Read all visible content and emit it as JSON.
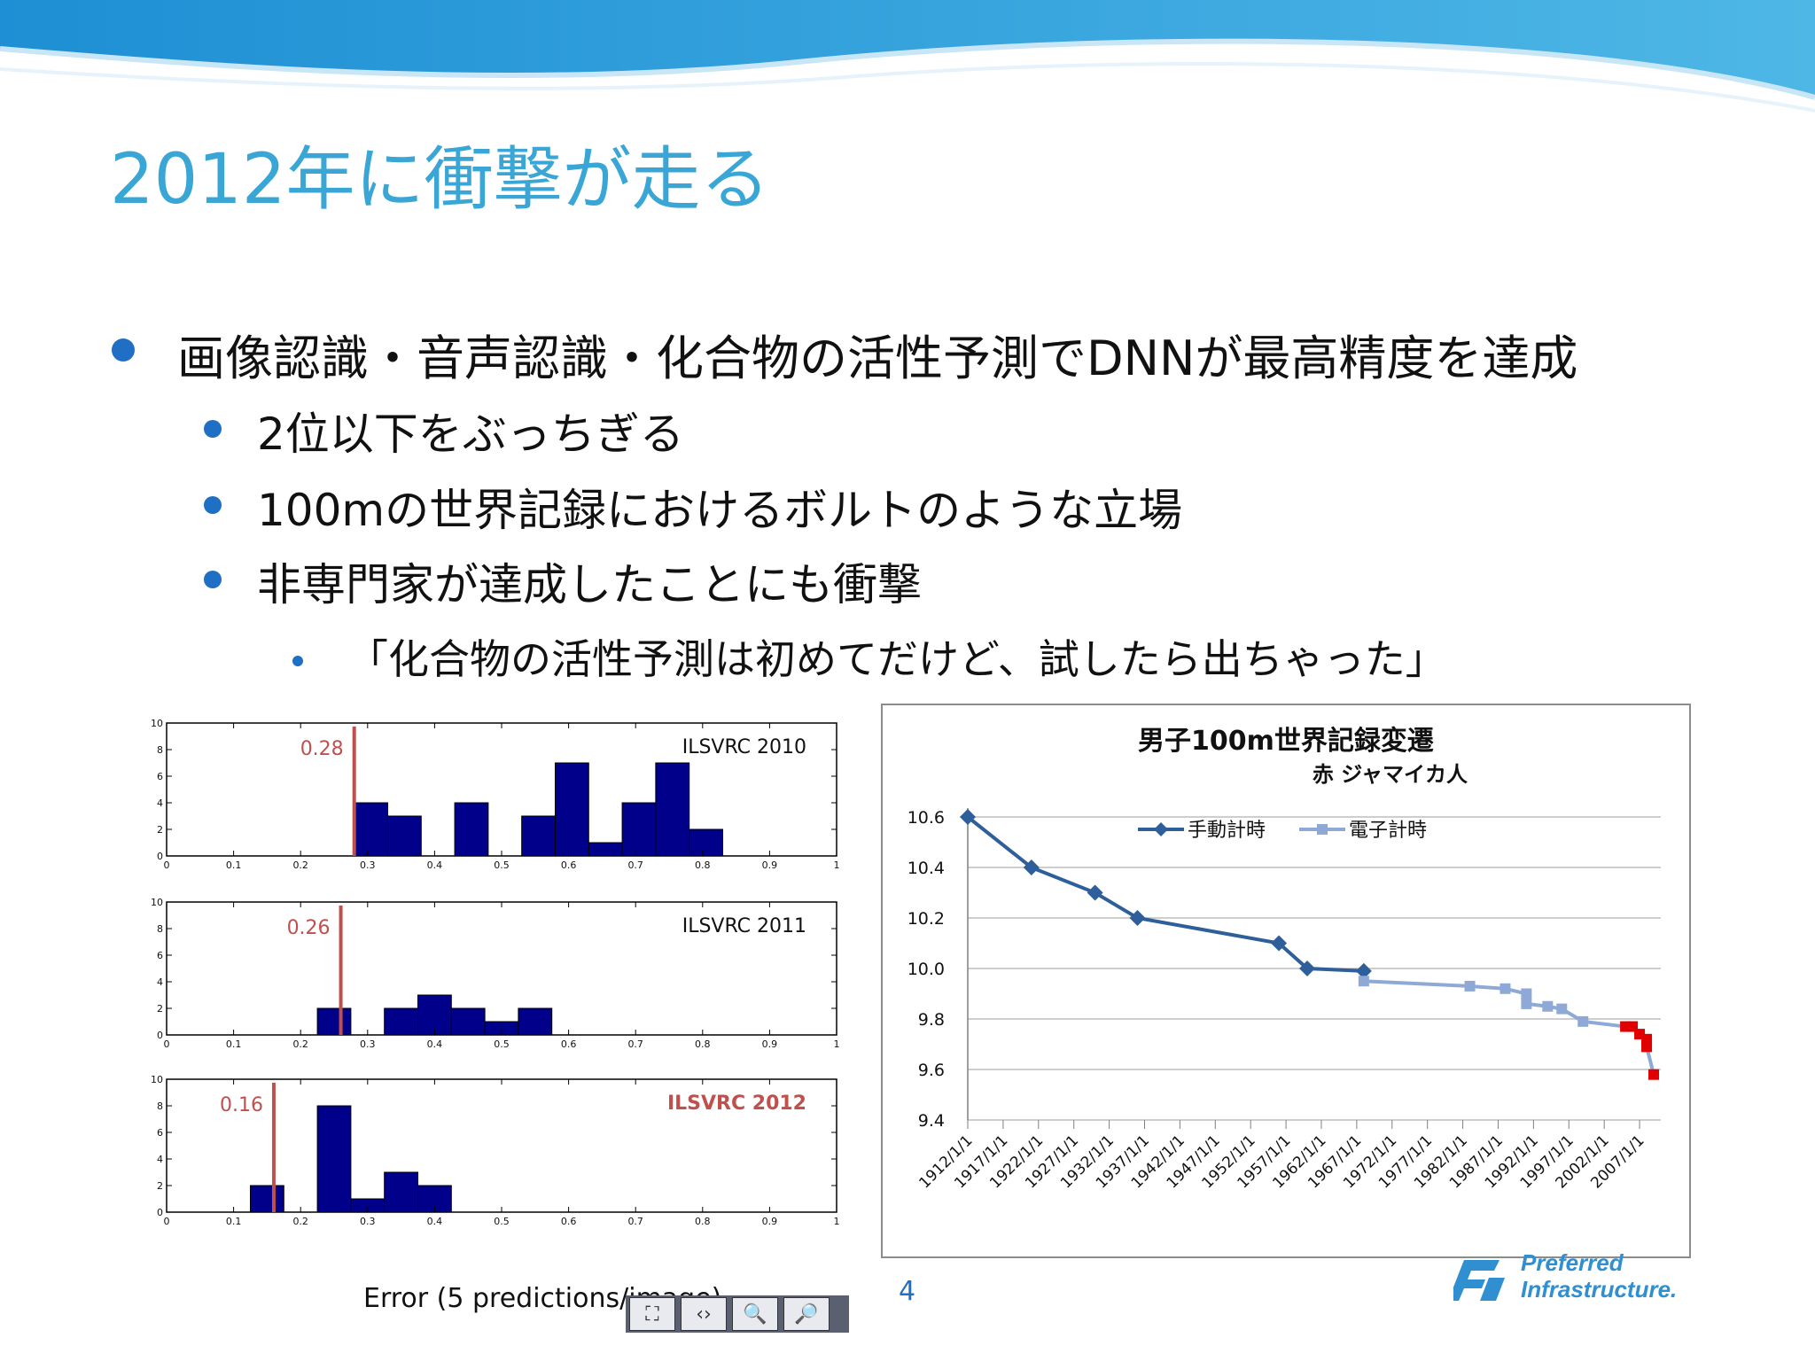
{
  "slide": {
    "title": "2012年に衝撃が走る",
    "bullets": [
      {
        "level": 1,
        "text": "画像認識・音声認識・化合物の活性予測でDNNが最高精度を達成"
      },
      {
        "level": 2,
        "text": "2位以下をぶっちぎる"
      },
      {
        "level": 2,
        "text": "100mの世界記録におけるボルトのような立場"
      },
      {
        "level": 2,
        "text": "非専門家が達成したことにも衝撃"
      },
      {
        "level": 3,
        "text": "「化合物の活性予測は初めてだけど、試したら出ちゃった」"
      }
    ],
    "page_number": "4",
    "logo_line1": "Preferred",
    "logo_line2": "Infrastructure.",
    "colors": {
      "title": "#3aa6d6",
      "bullet": "#1f6fc4",
      "bar": "#00008b",
      "marker": "#c0504d",
      "line_manual": "#2e5f9a",
      "line_electronic": "#8fa9d6",
      "jamaica": "#e00000"
    }
  },
  "chart_data": [
    {
      "type": "bar",
      "title": "ILSVRC 2010",
      "marker_label": "0.28",
      "marker_x": 0.28,
      "x_ticks": [
        "0",
        "0.1",
        "0.2",
        "0.3",
        "0.4",
        "0.5",
        "0.6",
        "0.7",
        "0.8",
        "0.9",
        "1"
      ],
      "y_ticks": [
        "0",
        "2",
        "4",
        "6",
        "8",
        "10"
      ],
      "xlim": [
        0,
        1
      ],
      "ylim": [
        0,
        10
      ],
      "bin_width": 0.05,
      "bins": [
        [
          0.28,
          4
        ],
        [
          0.33,
          3
        ],
        [
          0.43,
          4
        ],
        [
          0.53,
          3
        ],
        [
          0.58,
          7
        ],
        [
          0.63,
          1
        ],
        [
          0.68,
          4
        ],
        [
          0.73,
          7
        ],
        [
          0.78,
          2
        ]
      ]
    },
    {
      "type": "bar",
      "title": "ILSVRC 2011",
      "marker_label": "0.26",
      "marker_x": 0.26,
      "x_ticks": [
        "0",
        "0.1",
        "0.2",
        "0.3",
        "0.4",
        "0.5",
        "0.6",
        "0.7",
        "0.8",
        "0.9",
        "1"
      ],
      "y_ticks": [
        "0",
        "2",
        "4",
        "6",
        "8",
        "10"
      ],
      "xlim": [
        0,
        1
      ],
      "ylim": [
        0,
        10
      ],
      "bin_width": 0.05,
      "bins": [
        [
          0.225,
          2
        ],
        [
          0.325,
          2
        ],
        [
          0.375,
          3
        ],
        [
          0.425,
          2
        ],
        [
          0.475,
          1
        ],
        [
          0.525,
          2
        ]
      ]
    },
    {
      "type": "bar",
      "title": "ILSVRC 2012",
      "marker_label": "0.16",
      "marker_x": 0.16,
      "x_ticks": [
        "0",
        "0.1",
        "0.2",
        "0.3",
        "0.4",
        "0.5",
        "0.6",
        "0.7",
        "0.8",
        "0.9",
        "1"
      ],
      "y_ticks": [
        "0",
        "2",
        "4",
        "6",
        "8",
        "10"
      ],
      "xlim": [
        0,
        1
      ],
      "ylim": [
        0,
        10
      ],
      "bin_width": 0.05,
      "bins": [
        [
          0.125,
          2
        ],
        [
          0.225,
          8
        ],
        [
          0.275,
          1
        ],
        [
          0.325,
          3
        ],
        [
          0.375,
          2
        ]
      ],
      "xlabel": "Error (5 predictions/image)"
    },
    {
      "type": "line",
      "title": "男子100m世界記録変遷",
      "subtitle": "赤 ジャマイカ人",
      "y_ticks": [
        "9.4",
        "9.6",
        "9.8",
        "10.0",
        "10.2",
        "10.4",
        "10.6"
      ],
      "ylim": [
        9.4,
        10.6
      ],
      "x_ticks": [
        "1912/1/1",
        "1917/1/1",
        "1922/1/1",
        "1927/1/1",
        "1932/1/1",
        "1937/1/1",
        "1942/1/1",
        "1947/1/1",
        "1952/1/1",
        "1957/1/1",
        "1962/1/1",
        "1967/1/1",
        "1972/1/1",
        "1977/1/1",
        "1982/1/1",
        "1987/1/1",
        "1992/1/1",
        "1997/1/1",
        "2002/1/1",
        "2007/1/1"
      ],
      "xlim": [
        1912,
        2010
      ],
      "legend": "top-left",
      "series": [
        {
          "name": "手動計時",
          "points": [
            [
              1912,
              10.6
            ],
            [
              1921,
              10.4
            ],
            [
              1930,
              10.3
            ],
            [
              1936,
              10.2
            ],
            [
              1956,
              10.1
            ],
            [
              1960,
              10.0
            ],
            [
              1968,
              9.99
            ]
          ]
        },
        {
          "name": "電子計時",
          "points": [
            [
              1968,
              9.95
            ],
            [
              1983,
              9.93
            ],
            [
              1988,
              9.92
            ],
            [
              1991,
              9.9
            ],
            [
              1991,
              9.86
            ],
            [
              1994,
              9.85
            ],
            [
              1996,
              9.84
            ],
            [
              1999,
              9.79
            ],
            [
              2005,
              9.77
            ],
            [
              2006,
              9.77
            ],
            [
              2007,
              9.74
            ],
            [
              2008,
              9.72
            ],
            [
              2008,
              9.69
            ],
            [
              2009,
              9.58
            ]
          ]
        }
      ],
      "jamaica_from_year": 2005
    }
  ],
  "toolbar": {
    "icons": [
      "fit-icon",
      "expand-icon",
      "zoom-out-icon",
      "zoom-in-icon"
    ]
  }
}
